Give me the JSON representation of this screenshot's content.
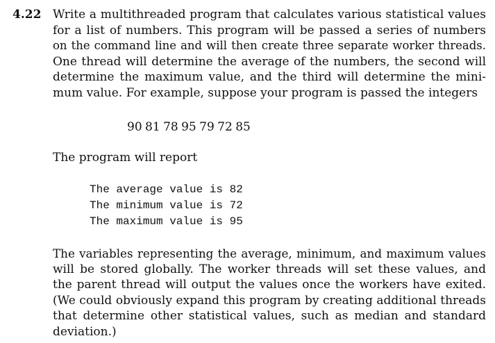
{
  "exercise": {
    "number": "4.22",
    "intro_lines": [
      "Write a multithreaded program that calculates various statistical values",
      "for a list of numbers. This program will be passed a series of numbers",
      "on the command line and will then create three separate worker threads.",
      "One thread will determine the average of the numbers, the second will",
      "determine the maximum value, and the third will determine the mini-",
      "mum value. For example, suppose your program is passed the integers"
    ],
    "example_input": "90 81 78 95 79 72 85",
    "report_text": "The program will report",
    "output_lines": [
      "The average value is 82",
      "The minimum value is 72",
      "The maximum value is 95"
    ],
    "closing_lines": [
      "The variables representing the average, minimum, and maximum values",
      "will be stored globally. The worker threads will set these values, and",
      "the parent thread will output the values once the workers have exited.",
      "(We could obviously expand this program by creating additional threads",
      "that determine other statistical values, such as median and standard",
      "deviation.)"
    ]
  }
}
